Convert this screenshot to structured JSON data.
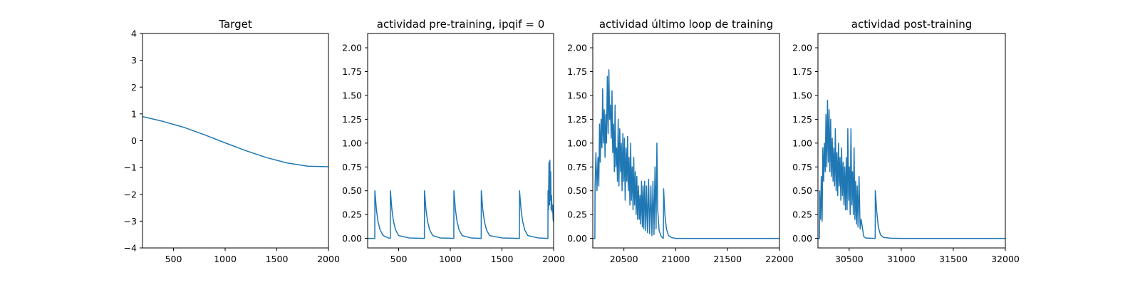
{
  "chart_data": [
    {
      "type": "line",
      "title": "Target",
      "xlim": [
        200,
        2000
      ],
      "ylim": [
        -4,
        4
      ],
      "xticks": [
        500,
        1000,
        1500,
        2000
      ],
      "yticks": [
        4,
        3,
        2,
        1,
        0,
        -1,
        -2,
        -3,
        -4
      ],
      "xtick_labels": [
        "500",
        "1000",
        "1500",
        "2000"
      ],
      "ytick_labels": [
        "4",
        "3",
        "2",
        "1",
        "0",
        "−1",
        "−2",
        "−3",
        "−4"
      ],
      "series": [
        {
          "color": "#1f77b4",
          "x": [
            200,
            400,
            600,
            800,
            1000,
            1200,
            1400,
            1600,
            1800,
            2000
          ],
          "y": [
            0.9,
            0.72,
            0.5,
            0.22,
            -0.08,
            -0.37,
            -0.63,
            -0.83,
            -0.95,
            -0.97
          ]
        }
      ]
    },
    {
      "type": "line",
      "title": "actividad pre-training, ipqif = 0",
      "xlim": [
        200,
        2000
      ],
      "ylim": [
        -0.1,
        2.15
      ],
      "xticks": [
        500,
        1000,
        1500,
        2000
      ],
      "yticks": [
        0,
        0.25,
        0.5,
        0.75,
        1.0,
        1.25,
        1.5,
        1.75,
        2.0
      ],
      "xtick_labels": [
        "500",
        "1000",
        "1500",
        "2000"
      ],
      "ytick_labels": [
        "0.00",
        "0.25",
        "0.50",
        "0.75",
        "1.00",
        "1.25",
        "1.50",
        "1.75",
        "2.00"
      ],
      "series": [
        {
          "color": "#1f77b4",
          "x": [
            200,
            269,
            270,
            285,
            300,
            320,
            350,
            400,
            419,
            420,
            435,
            450,
            470,
            500,
            600,
            749,
            750,
            765,
            780,
            800,
            830,
            900,
            1000,
            1034,
            1035,
            1050,
            1065,
            1085,
            1115,
            1200,
            1299,
            1300,
            1315,
            1330,
            1350,
            1380,
            1500,
            1669,
            1670,
            1685,
            1700,
            1720,
            1750,
            1850,
            1945,
            1946,
            1950,
            1955,
            1960,
            1964,
            1968,
            1972,
            1976,
            1980,
            1985,
            1990,
            1995,
            2000
          ],
          "y": [
            0,
            0,
            0.5,
            0.3,
            0.18,
            0.09,
            0.03,
            0.005,
            0,
            0.5,
            0.3,
            0.18,
            0.09,
            0.03,
            0.005,
            0,
            0.5,
            0.3,
            0.18,
            0.09,
            0.03,
            0.005,
            0.002,
            0,
            0.5,
            0.3,
            0.18,
            0.09,
            0.03,
            0.005,
            0,
            0.5,
            0.3,
            0.18,
            0.09,
            0.03,
            0.005,
            0,
            0.5,
            0.3,
            0.18,
            0.09,
            0.03,
            0.005,
            0,
            0.5,
            0.3,
            0.8,
            0.35,
            0.82,
            0.4,
            0.7,
            0.3,
            0.45,
            0.28,
            0.35,
            0.2,
            0.17
          ]
        }
      ]
    },
    {
      "type": "line",
      "title": "actividad último loop de training",
      "xlim": [
        20200,
        22000
      ],
      "ylim": [
        -0.1,
        2.15
      ],
      "xticks": [
        20500,
        21000,
        21500,
        22000
      ],
      "yticks": [
        0,
        0.25,
        0.5,
        0.75,
        1.0,
        1.25,
        1.5,
        1.75,
        2.0
      ],
      "xtick_labels": [
        "20500",
        "21000",
        "21500",
        "22000"
      ],
      "ytick_labels": [
        "0.00",
        "0.25",
        "0.50",
        "0.75",
        "1.00",
        "1.25",
        "1.50",
        "1.75",
        "2.00"
      ],
      "series": [
        {
          "color": "#1f77b4",
          "x": [
            20200,
            20220,
            20222,
            20230,
            20240,
            20250,
            20258,
            20265,
            20272,
            20280,
            20288,
            20295,
            20302,
            20310,
            20318,
            20325,
            20332,
            20340,
            20348,
            20355,
            20362,
            20370,
            20378,
            20385,
            20392,
            20400,
            20408,
            20415,
            20422,
            20430,
            20438,
            20445,
            20452,
            20460,
            20468,
            20475,
            20482,
            20490,
            20498,
            20505,
            20512,
            20520,
            20528,
            20535,
            20542,
            20550,
            20558,
            20565,
            20572,
            20580,
            20588,
            20595,
            20602,
            20610,
            20618,
            20625,
            20632,
            20640,
            20648,
            20655,
            20662,
            20670,
            20678,
            20685,
            20692,
            20700,
            20710,
            20718,
            20728,
            20738,
            20748,
            20760,
            20770,
            20780,
            20790,
            20800,
            20810,
            20818,
            20826,
            20840,
            20860,
            20880,
            20883,
            20895,
            20910,
            20930,
            20960,
            21000,
            21200,
            21500,
            22000
          ],
          "y": [
            0,
            0,
            0.55,
            0.9,
            0.5,
            0.85,
            0.55,
            1.2,
            0.8,
            1.25,
            0.95,
            1.57,
            1.0,
            1.35,
            0.85,
            1.3,
            1.0,
            1.7,
            1.1,
            1.77,
            1.25,
            1.4,
            1.05,
            1.55,
            0.9,
            1.2,
            0.7,
            1.4,
            0.75,
            0.95,
            0.6,
            1.25,
            0.55,
            1.15,
            0.7,
            1.0,
            0.5,
            1.1,
            0.6,
            1.05,
            0.4,
            0.95,
            0.6,
            1.07,
            0.5,
            0.85,
            0.35,
            1.0,
            0.4,
            0.75,
            0.3,
            0.85,
            0.35,
            0.7,
            0.25,
            0.65,
            0.2,
            0.55,
            0.2,
            0.45,
            0.15,
            0.6,
            0.12,
            0.55,
            0.1,
            0.6,
            0.08,
            0.55,
            0.06,
            0.62,
            0.05,
            0.55,
            0.03,
            0.6,
            0.04,
            0.75,
            0.1,
            1.0,
            0.3,
            0.08,
            0.02,
            0,
            0.52,
            0.25,
            0.1,
            0.03,
            0.008,
            0,
            0,
            0,
            0
          ]
        }
      ]
    },
    {
      "type": "line",
      "title": "actividad post-training",
      "xlim": [
        30200,
        32000
      ],
      "ylim": [
        -0.1,
        2.15
      ],
      "xticks": [
        30500,
        31000,
        31500,
        32000
      ],
      "yticks": [
        0,
        0.25,
        0.5,
        0.75,
        1.0,
        1.25,
        1.5,
        1.75,
        2.0
      ],
      "xtick_labels": [
        "30500",
        "31000",
        "31500",
        "32000"
      ],
      "ytick_labels": [
        "0.00",
        "0.25",
        "0.50",
        "0.75",
        "1.00",
        "1.25",
        "1.50",
        "1.75",
        "2.00"
      ],
      "series": [
        {
          "color": "#1f77b4",
          "x": [
            30200,
            30215,
            30216,
            30225,
            30232,
            30240,
            30247,
            30255,
            30262,
            30270,
            30277,
            30285,
            30292,
            30300,
            30307,
            30315,
            30322,
            30330,
            30337,
            30345,
            30352,
            30360,
            30367,
            30375,
            30382,
            30390,
            30397,
            30405,
            30412,
            30420,
            30427,
            30435,
            30442,
            30450,
            30457,
            30465,
            30472,
            30480,
            30487,
            30495,
            30502,
            30510,
            30517,
            30525,
            30532,
            30540,
            30547,
            30555,
            30562,
            30570,
            30577,
            30585,
            30595,
            30605,
            30615,
            30640,
            30660,
            30750,
            30751,
            30765,
            30780,
            30800,
            30830,
            30900,
            31000,
            31500,
            32000
          ],
          "y": [
            0,
            0,
            0.5,
            0.2,
            0.65,
            0.18,
            0.95,
            0.6,
            1.0,
            0.7,
            1.3,
            0.75,
            1.45,
            0.8,
            1.35,
            0.7,
            1.25,
            0.65,
            1.05,
            0.6,
            0.95,
            0.55,
            1.15,
            0.5,
            0.9,
            0.45,
            1.0,
            0.55,
            0.85,
            0.4,
            0.95,
            0.45,
            0.8,
            0.35,
            0.75,
            0.3,
            0.85,
            0.3,
            1.15,
            0.4,
            0.75,
            0.25,
            1.15,
            0.35,
            0.7,
            0.25,
            0.95,
            0.2,
            0.6,
            0.15,
            0.55,
            0.12,
            0.65,
            0.1,
            0.2,
            0.02,
            0.004,
            0,
            0.5,
            0.28,
            0.12,
            0.04,
            0.01,
            0.002,
            0,
            0,
            0
          ]
        }
      ]
    }
  ]
}
